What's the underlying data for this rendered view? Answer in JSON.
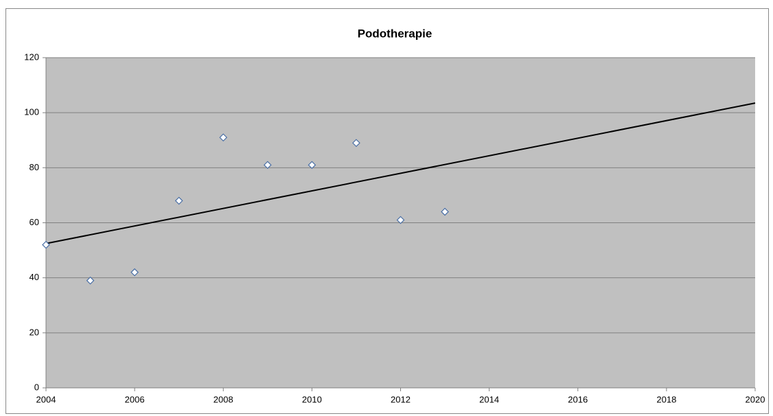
{
  "chart_data": {
    "type": "scatter",
    "title": "Podotherapie",
    "points": {
      "x": [
        2004,
        2005,
        2006,
        2007,
        2008,
        2009,
        2010,
        2011,
        2012,
        2013
      ],
      "values": [
        52,
        39,
        42,
        68,
        91,
        81,
        81,
        89,
        61,
        64
      ],
      "color": "#4a6fa5"
    },
    "trendline": {
      "x": [
        2004,
        2020
      ],
      "values": [
        52.45,
        103.5
      ],
      "color": "#000000"
    },
    "xlim": [
      2004,
      2020
    ],
    "xticks": [
      2004,
      2006,
      2008,
      2010,
      2012,
      2014,
      2016,
      2018,
      2020
    ],
    "ylim": [
      0,
      120
    ],
    "yticks": [
      0,
      20,
      40,
      60,
      80,
      100,
      120
    ],
    "grid": true,
    "plot_background": "#c0c0c0"
  }
}
